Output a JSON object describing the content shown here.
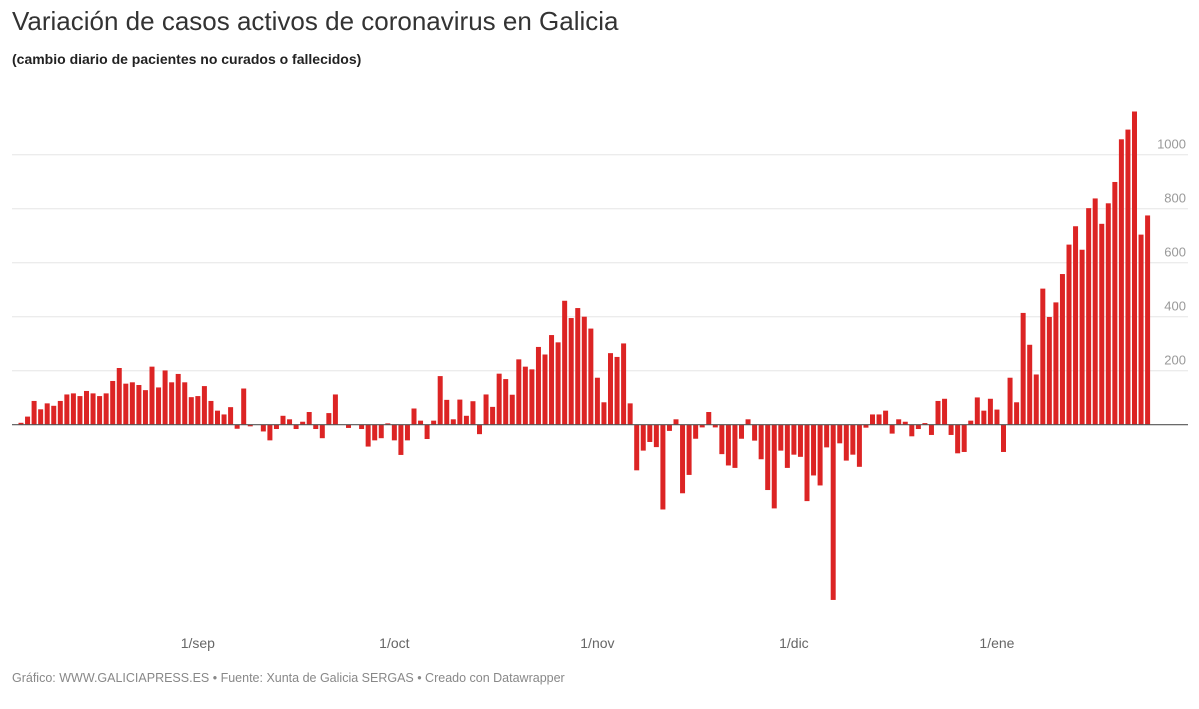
{
  "title": "Variación de casos activos de coronavirus en Galicia",
  "subtitle": "(cambio diario de pacientes no curados o fallecidos)",
  "footer": "Gráfico: WWW.GALICIAPRESS.ES • Fuente: Xunta de Galicia SERGAS • Creado con Datawrapper",
  "chart_data": {
    "type": "bar",
    "title": "Variación de casos activos de coronavirus en Galicia",
    "subtitle": "(cambio diario de pacientes no curados o fallecidos)",
    "xlabel": "",
    "ylabel": "",
    "ylim": [
      -650,
      1160
    ],
    "grid": true,
    "bar_color": "#dc2424",
    "y_ticks": [
      200,
      400,
      600,
      800,
      1000
    ],
    "y_tick_labels": [
      "200",
      "400",
      "600",
      "800",
      "1000"
    ],
    "x_ticks": [
      "1/sep",
      "1/oct",
      "1/nov",
      "1/dic",
      "1/ene"
    ],
    "x": [
      "5/ago",
      "6/ago",
      "7/ago",
      "8/ago",
      "9/ago",
      "10/ago",
      "11/ago",
      "12/ago",
      "13/ago",
      "14/ago",
      "15/ago",
      "16/ago",
      "17/ago",
      "18/ago",
      "19/ago",
      "20/ago",
      "21/ago",
      "22/ago",
      "23/ago",
      "24/ago",
      "25/ago",
      "26/ago",
      "27/ago",
      "28/ago",
      "29/ago",
      "30/ago",
      "31/ago",
      "1/sep",
      "2/sep",
      "3/sep",
      "4/sep",
      "5/sep",
      "6/sep",
      "7/sep",
      "8/sep",
      "9/sep",
      "10/sep",
      "11/sep",
      "12/sep",
      "13/sep",
      "14/sep",
      "15/sep",
      "16/sep",
      "17/sep",
      "18/sep",
      "19/sep",
      "20/sep",
      "21/sep",
      "22/sep",
      "23/sep",
      "24/sep",
      "25/sep",
      "26/sep",
      "27/sep",
      "28/sep",
      "29/sep",
      "30/sep",
      "1/oct",
      "2/oct",
      "3/oct",
      "4/oct",
      "5/oct",
      "6/oct",
      "7/oct",
      "8/oct",
      "9/oct",
      "10/oct",
      "11/oct",
      "12/oct",
      "13/oct",
      "14/oct",
      "15/oct",
      "16/oct",
      "17/oct",
      "18/oct",
      "19/oct",
      "20/oct",
      "21/oct",
      "22/oct",
      "23/oct",
      "24/oct",
      "25/oct",
      "26/oct",
      "27/oct",
      "28/oct",
      "29/oct",
      "30/oct",
      "31/oct",
      "1/nov",
      "2/nov",
      "3/nov",
      "4/nov",
      "5/nov",
      "6/nov",
      "7/nov",
      "8/nov",
      "9/nov",
      "10/nov",
      "11/nov",
      "12/nov",
      "13/nov",
      "14/nov",
      "15/nov",
      "16/nov",
      "17/nov",
      "18/nov",
      "19/nov",
      "20/nov",
      "21/nov",
      "22/nov",
      "23/nov",
      "24/nov",
      "25/nov",
      "26/nov",
      "27/nov",
      "28/nov",
      "29/nov",
      "30/nov",
      "1/dic",
      "2/dic",
      "3/dic",
      "4/dic",
      "5/dic",
      "6/dic",
      "7/dic",
      "8/dic",
      "9/dic",
      "10/dic",
      "11/dic",
      "12/dic",
      "13/dic",
      "14/dic",
      "15/dic",
      "16/dic",
      "17/dic",
      "18/dic",
      "19/dic",
      "20/dic",
      "21/dic",
      "22/dic",
      "23/dic",
      "24/dic",
      "25/dic",
      "26/dic",
      "27/dic",
      "28/dic",
      "29/dic",
      "30/dic",
      "31/dic",
      "1/ene",
      "2/ene",
      "3/ene",
      "4/ene",
      "5/ene",
      "6/ene",
      "7/ene",
      "8/ene",
      "9/ene",
      "10/ene",
      "11/ene",
      "12/ene",
      "13/ene",
      "14/ene",
      "15/ene",
      "16/ene",
      "17/ene",
      "18/ene",
      "19/ene",
      "20/ene",
      "21/ene",
      "22/ene",
      "23/ene",
      "24/ene"
    ],
    "values": [
      7,
      30,
      88,
      57,
      79,
      70,
      88,
      112,
      116,
      106,
      125,
      116,
      106,
      116,
      162,
      210,
      152,
      157,
      147,
      128,
      215,
      138,
      201,
      157,
      188,
      157,
      102,
      106,
      143,
      88,
      52,
      38,
      65,
      -15,
      134,
      -6,
      0,
      -25,
      -58,
      -16,
      33,
      20,
      -16,
      11,
      47,
      -16,
      -50,
      43,
      112,
      0,
      -12,
      0,
      -16,
      -81,
      -58,
      -50,
      5,
      -58,
      -112,
      -58,
      60,
      15,
      -53,
      15,
      180,
      92,
      20,
      93,
      33,
      87,
      -35,
      112,
      66,
      189,
      169,
      111,
      242,
      215,
      205,
      288,
      260,
      332,
      305,
      459,
      395,
      432,
      400,
      356,
      174,
      83,
      265,
      251,
      301,
      79,
      -169,
      -96,
      -64,
      -83,
      -314,
      -23,
      20,
      -254,
      -186,
      -52,
      -10,
      47,
      -10,
      -109,
      -151,
      -160,
      -52,
      20,
      -59,
      -128,
      -242,
      -310,
      -96,
      -160,
      -111,
      -119,
      -283,
      -188,
      -225,
      -84,
      -649,
      -69,
      -133,
      -111,
      -156,
      -11,
      38,
      38,
      52,
      -33,
      20,
      11,
      -43,
      -16,
      6,
      -38,
      88,
      96,
      -38,
      -106,
      -101,
      15,
      101,
      52,
      96,
      56,
      -101,
      174,
      83,
      414,
      296,
      186,
      504,
      399,
      453,
      558,
      667,
      735,
      648,
      802,
      838,
      744,
      820,
      899,
      1057,
      1093,
      1160,
      704,
      775
    ]
  }
}
